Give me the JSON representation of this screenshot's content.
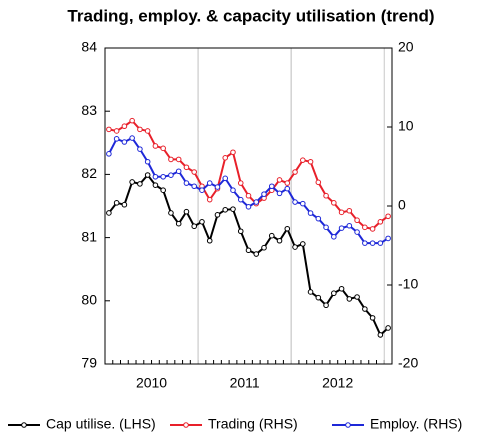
{
  "chart_data": {
    "type": "line",
    "title": "Trading, employ. & capacity utilisation (trend)",
    "categories": [
      null,
      null,
      null,
      null,
      null,
      null,
      "2010",
      null,
      null,
      null,
      null,
      null,
      null,
      null,
      null,
      null,
      null,
      null,
      "2011",
      null,
      null,
      null,
      null,
      null,
      null,
      null,
      null,
      null,
      null,
      null,
      "2012",
      null,
      null,
      null,
      null,
      null,
      null
    ],
    "series": [
      {
        "name": "Cap utilise. (LHS)",
        "color": "#000000",
        "values": [
          81.39,
          81.55,
          81.52,
          81.88,
          81.85,
          81.99,
          81.83,
          81.75,
          81.39,
          81.22,
          81.41,
          81.18,
          81.25,
          80.95,
          81.36,
          81.44,
          81.45,
          81.1,
          80.8,
          80.74,
          80.84,
          81.03,
          80.95,
          81.14,
          80.85,
          80.9,
          80.14,
          80.05,
          79.93,
          80.12,
          80.19,
          80.03,
          80.06,
          79.87,
          79.73,
          79.46,
          79.57
        ]
      },
      {
        "name": "Trading (RHS)",
        "color": "#e8202a",
        "axis": "y2",
        "values": [
          9.7,
          9.5,
          10.1,
          10.8,
          9.7,
          9.5,
          7.6,
          7.3,
          5.9,
          5.9,
          4.9,
          4.3,
          2.5,
          0.8,
          2.2,
          6.1,
          6.8,
          2.9,
          1.3,
          0.3,
          1.0,
          2.0,
          3.3,
          2.9,
          4.3,
          5.8,
          5.6,
          3.0,
          1.3,
          0.4,
          -0.8,
          -0.6,
          -1.8,
          -2.7,
          -2.9,
          -2.0,
          -1.3
        ]
      },
      {
        "name": "Employ. (RHS)",
        "color": "#1e28d8",
        "axis": "y2",
        "values": [
          6.6,
          8.5,
          8.1,
          8.6,
          7.2,
          5.6,
          3.7,
          3.7,
          3.9,
          4.4,
          2.9,
          2.5,
          2.0,
          2.9,
          2.4,
          3.5,
          2.0,
          0.8,
          -0.1,
          0.5,
          1.5,
          2.5,
          1.6,
          2.2,
          0.5,
          0.3,
          -0.9,
          -1.6,
          -2.7,
          -3.9,
          -2.8,
          -2.5,
          -3.3,
          -4.7,
          -4.7,
          -4.7,
          -4.1
        ]
      }
    ],
    "ylim": [
      79,
      84
    ],
    "yticks": [
      79,
      80,
      81,
      82,
      83,
      84
    ],
    "y2lim": [
      -20,
      20
    ],
    "y2ticks": [
      -20,
      -10,
      0,
      10,
      20
    ],
    "legend": "bottom"
  }
}
